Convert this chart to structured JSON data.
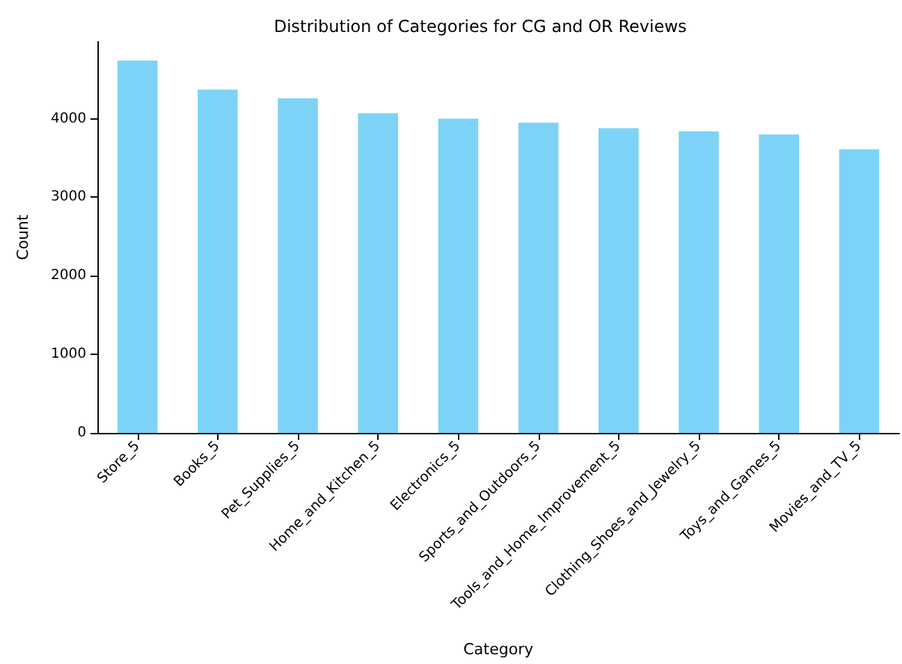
{
  "chart_data": {
    "type": "bar",
    "title": "Distribution of Categories for CG and OR Reviews",
    "xlabel": "Category",
    "ylabel": "Count",
    "categories": [
      "Store_5",
      "Books_5",
      "Pet_Supplies_5",
      "Home_and_Kitchen_5",
      "Electronics_5",
      "Sports_and_Outdoors_5",
      "Tools_and_Home_Improvement_5",
      "Clothing_Shoes_and_Jewelry_5",
      "Toys_and_Games_5",
      "Movies_and_TV_5"
    ],
    "values": [
      4740,
      4370,
      4260,
      4070,
      4000,
      3950,
      3880,
      3840,
      3800,
      3610
    ],
    "color": "#7dd3f7",
    "ylim": [
      0,
      4980
    ],
    "yticks": [
      0,
      1000,
      2000,
      3000,
      4000
    ],
    "grid": false
  }
}
